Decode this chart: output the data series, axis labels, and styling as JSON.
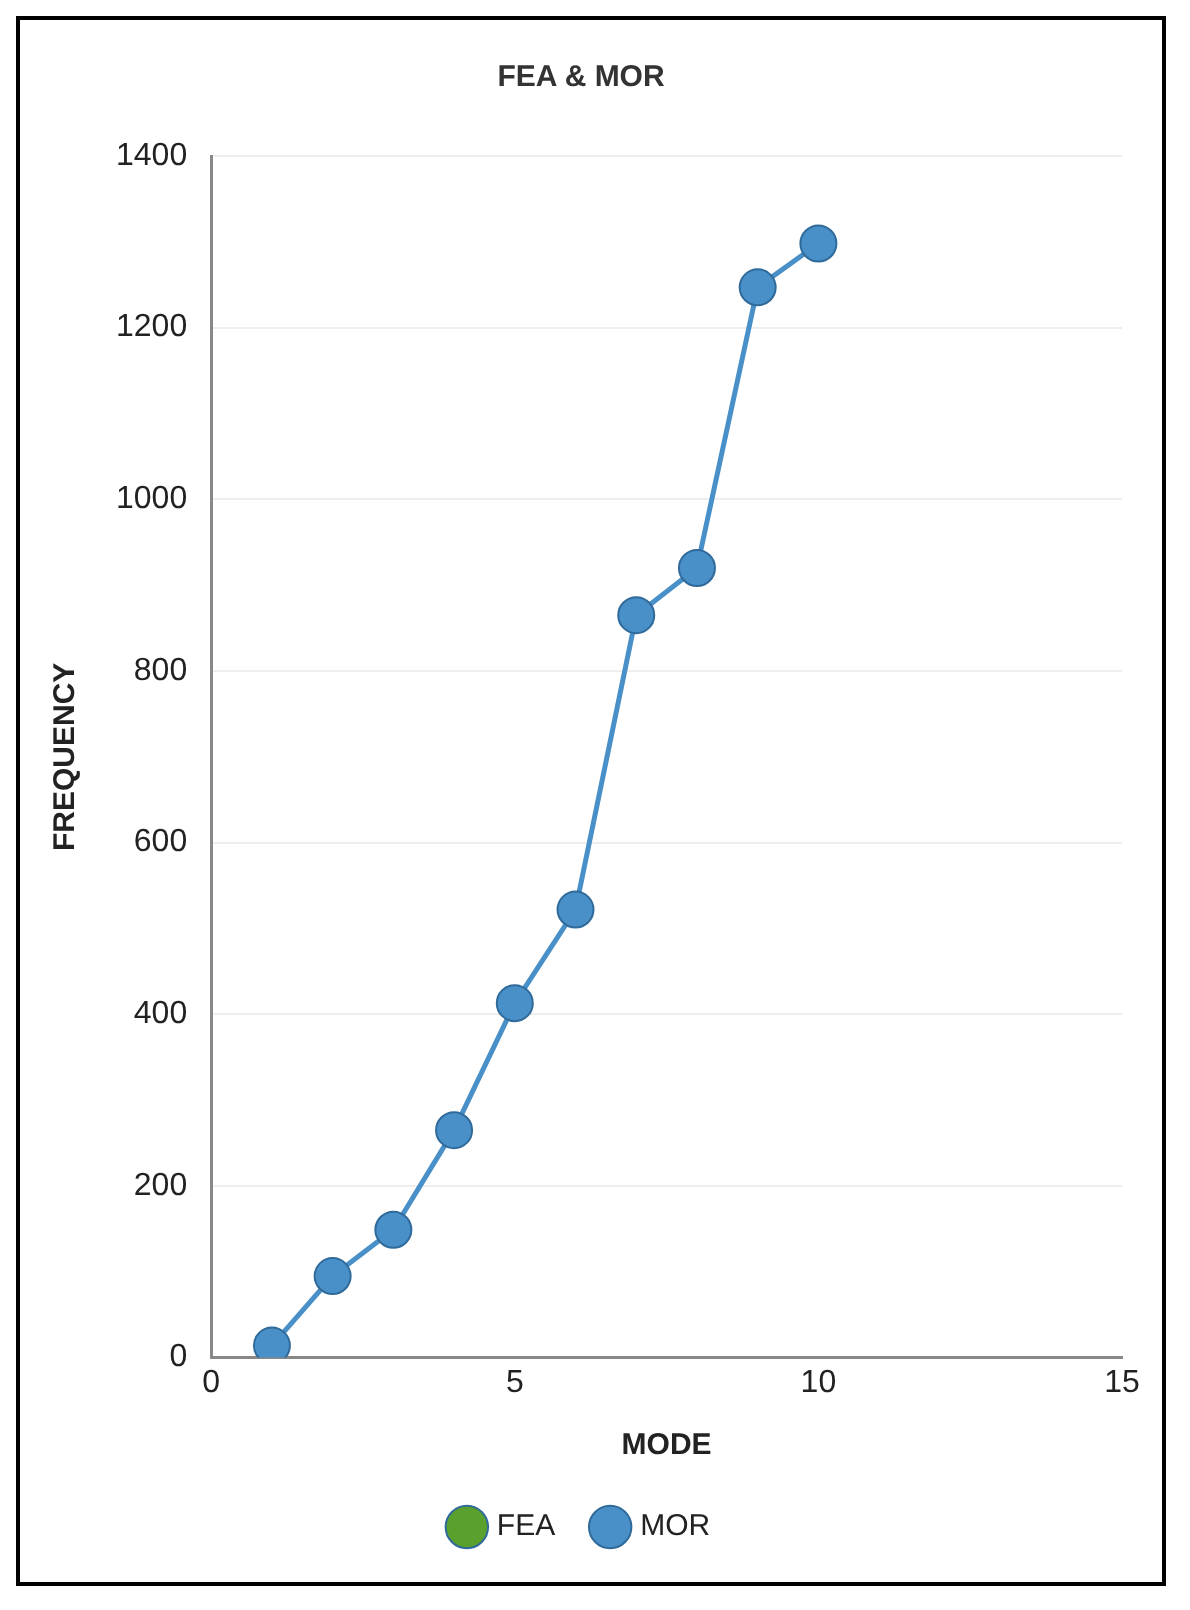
{
  "chart_data": {
    "type": "line",
    "title": "FEA & MOR",
    "xlabel": "MODE",
    "ylabel": "FREQUENCY",
    "x": [
      1,
      2,
      3,
      4,
      5,
      6,
      7,
      8,
      9,
      10
    ],
    "series": [
      {
        "name": "FEA",
        "color": "#5aa02c",
        "values": [
          null,
          null,
          null,
          null,
          null,
          null,
          null,
          null,
          null,
          null
        ]
      },
      {
        "name": "MOR",
        "color": "#4a90c8",
        "values": [
          14,
          95,
          149,
          265,
          413,
          522,
          865,
          920,
          1247,
          1298
        ]
      }
    ],
    "xlim": [
      0,
      15
    ],
    "xticks": [
      0,
      5,
      10,
      15
    ],
    "ylim": [
      0,
      1400
    ],
    "yticks": [
      0,
      200,
      400,
      600,
      800,
      1000,
      1200,
      1400
    ],
    "grid": "y",
    "legend": "bottom",
    "marker": "circle",
    "line_style": "solid"
  }
}
